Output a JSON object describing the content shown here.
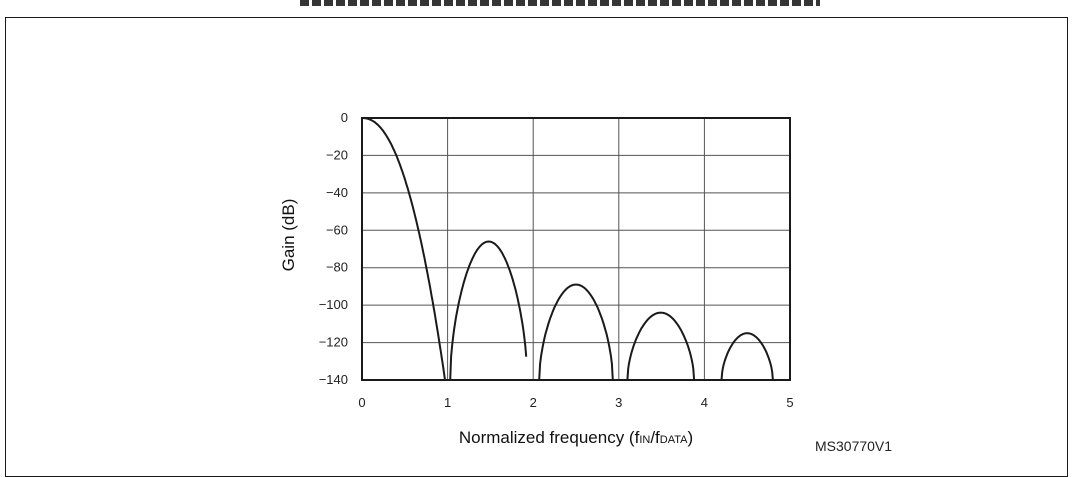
{
  "chart_data": {
    "type": "line",
    "title": "",
    "xlabel": "Normalized frequency (fIN/fDATA)",
    "xlabel_parts": {
      "prefix": "Normalized frequency (f",
      "sub1": "IN",
      "mid": "/f",
      "sub2": "DATA",
      "suffix": ")"
    },
    "ylabel": "Gain (dB)",
    "xlim": [
      0,
      5
    ],
    "ylim": [
      -140,
      0
    ],
    "x_ticks": [
      "0",
      "1",
      "2",
      "3",
      "4",
      "5"
    ],
    "y_ticks": [
      "0",
      "−20",
      "−40",
      "−60",
      "−80",
      "−100",
      "−120",
      "−140"
    ],
    "grid": true,
    "series": [
      {
        "color": "#1a1a1a",
        "lobes": [
          {
            "x_start": 0.0,
            "x_end": 0.97,
            "peak_x": 0.0,
            "peak_db": 0
          },
          {
            "x_start": 1.03,
            "x_end": 1.93,
            "peak_x": 1.45,
            "peak_db": -66
          },
          {
            "x_start": 2.07,
            "x_end": 2.93,
            "peak_x": 2.5,
            "peak_db": -89
          },
          {
            "x_start": 3.1,
            "x_end": 3.88,
            "peak_x": 3.5,
            "peak_db": -104
          },
          {
            "x_start": 4.2,
            "x_end": 4.8,
            "peak_x": 4.5,
            "peak_db": -115
          }
        ]
      }
    ]
  },
  "figure_id": "MS30770V1"
}
